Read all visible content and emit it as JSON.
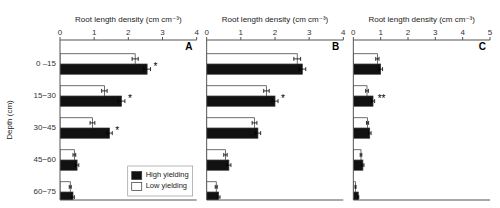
{
  "chart_data": [
    {
      "type": "bar",
      "orientation": "horizontal",
      "title": "A",
      "xlabel": "Root length density (cm cm⁻³)",
      "ylabel": "Depth (cm)",
      "categories": [
        "0 –15",
        "15−30",
        "30−45",
        "45−60",
        "60−75"
      ],
      "series": [
        {
          "name": "High yielding",
          "color": "#111111",
          "values": [
            2.55,
            1.8,
            1.45,
            0.5,
            0.38
          ],
          "errors": [
            0.1,
            0.1,
            0.08,
            0.05,
            0.04
          ]
        },
        {
          "name": "Low yielding",
          "color": "#ffffff",
          "values": [
            2.2,
            1.3,
            0.95,
            0.42,
            0.3
          ],
          "errors": [
            0.09,
            0.08,
            0.07,
            0.04,
            0.03
          ]
        }
      ],
      "annotations": [
        "*",
        "*",
        "*",
        null,
        null
      ],
      "xlim": [
        0,
        4
      ],
      "xticks": [
        0,
        1,
        2,
        3,
        4
      ],
      "grid": false,
      "legend": "lower right"
    },
    {
      "type": "bar",
      "orientation": "horizontal",
      "title": "B",
      "xlabel": "Root length density (cm cm⁻³)",
      "categories": [
        null,
        null,
        null,
        null,
        null
      ],
      "series": [
        {
          "color": "#111111",
          "values": [
            2.8,
            2.0,
            1.5,
            0.65,
            0.35
          ],
          "errors": [
            0.1,
            0.09,
            0.08,
            0.06,
            0.04
          ]
        },
        {
          "color": "#ffffff",
          "values": [
            2.65,
            1.75,
            1.4,
            0.55,
            0.28
          ],
          "errors": [
            0.1,
            0.08,
            0.07,
            0.05,
            0.03
          ]
        }
      ],
      "annotations": [
        null,
        "*",
        null,
        null,
        null
      ],
      "xlim": [
        0,
        4
      ],
      "xticks": [
        0,
        1,
        2,
        3,
        4
      ],
      "grid": false,
      "tick_labels": "x"
    },
    {
      "type": "bar",
      "orientation": "horizontal",
      "title": "C",
      "xlabel": "Root length density (cm cm⁻³)",
      "categories": [
        null,
        null,
        null,
        null,
        null
      ],
      "series": [
        {
          "color": "#111111",
          "values": [
            1.0,
            0.72,
            0.6,
            0.35,
            0.18
          ],
          "errors": [
            0.07,
            0.06,
            0.05,
            0.04,
            0.02
          ]
        },
        {
          "color": "#ffffff",
          "values": [
            0.88,
            0.5,
            0.52,
            0.28,
            0.08
          ],
          "errors": [
            0.06,
            0.05,
            0.04,
            0.03,
            0.02
          ]
        }
      ],
      "annotations": [
        null,
        "**",
        null,
        null,
        null
      ],
      "xlim": [
        0,
        5
      ],
      "xticks": [
        0,
        1,
        2,
        3,
        4,
        5
      ],
      "grid": false,
      "tick_labels": "x"
    }
  ]
}
